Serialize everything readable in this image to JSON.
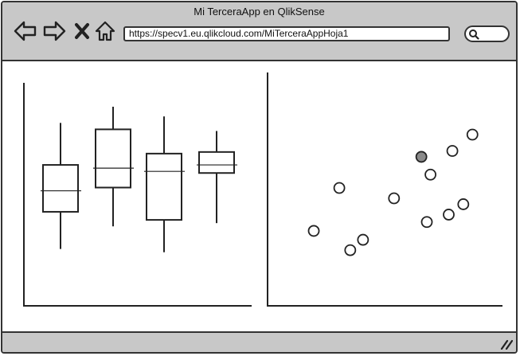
{
  "window": {
    "title": "Mi TerceraApp en QlikSense"
  },
  "toolbar": {
    "back_icon": "arrow-left-icon",
    "forward_icon": "arrow-right-icon",
    "close_icon": "x-icon",
    "home_icon": "home-icon",
    "url": "https://specv1.eu.qlikcloud.com/MiTerceraAppHoja1",
    "search_icon": "search-icon"
  },
  "chart_data": [
    {
      "type": "box",
      "title": "",
      "boxes": [
        {
          "whisker_low": 0.12,
          "q1": 0.35,
          "median": 0.48,
          "q3": 0.64,
          "whisker_high": 0.9
        },
        {
          "whisker_low": 0.26,
          "q1": 0.5,
          "median": 0.62,
          "q3": 0.86,
          "whisker_high": 1.0
        },
        {
          "whisker_low": 0.1,
          "q1": 0.3,
          "median": 0.6,
          "q3": 0.71,
          "whisker_high": 0.94
        },
        {
          "whisker_low": 0.28,
          "q1": 0.59,
          "median": 0.64,
          "q3": 0.72,
          "whisker_high": 0.85
        }
      ]
    },
    {
      "type": "scatter",
      "title": "",
      "points": [
        {
          "x": 0.21,
          "y": 0.57,
          "highlight": false
        },
        {
          "x": 0.07,
          "y": 0.28,
          "highlight": false
        },
        {
          "x": 0.34,
          "y": 0.22,
          "highlight": false
        },
        {
          "x": 0.27,
          "y": 0.15,
          "highlight": false
        },
        {
          "x": 0.51,
          "y": 0.5,
          "highlight": false
        },
        {
          "x": 0.66,
          "y": 0.78,
          "highlight": true
        },
        {
          "x": 0.71,
          "y": 0.66,
          "highlight": false
        },
        {
          "x": 0.83,
          "y": 0.82,
          "highlight": false
        },
        {
          "x": 0.94,
          "y": 0.93,
          "highlight": false
        },
        {
          "x": 0.69,
          "y": 0.34,
          "highlight": false
        },
        {
          "x": 0.81,
          "y": 0.39,
          "highlight": false
        },
        {
          "x": 0.89,
          "y": 0.46,
          "highlight": false
        }
      ],
      "highlight_color": "#8a8a8a"
    }
  ]
}
